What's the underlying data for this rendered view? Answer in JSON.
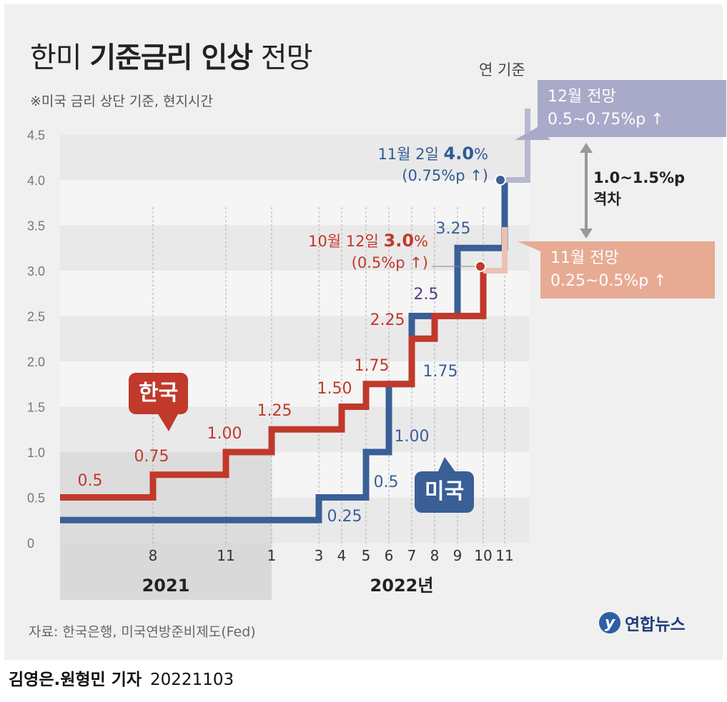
{
  "header": {
    "title_light_1": "한미 ",
    "title_bold": "기준금리 인상",
    "title_light_2": " 전망",
    "subtitle": "※미국 금리 상단 기준, 현지시간",
    "unit_label": "연 기준"
  },
  "chart_data": {
    "type": "line",
    "step": true,
    "title": "한미 기준금리 인상 전망",
    "ylim": [
      0,
      4.5
    ],
    "yticks": [
      "0",
      "0.5",
      "1.0",
      "1.5",
      "2.0",
      "2.5",
      "3.0",
      "3.5",
      "4.0",
      "4.5"
    ],
    "xticks": [
      "8",
      "11",
      "1",
      "3",
      "4",
      "5",
      "6",
      "7",
      "8",
      "9",
      "10",
      "11"
    ],
    "year_labels": [
      "2021",
      "2022년"
    ],
    "series": [
      {
        "name": "한국",
        "color": "#c0392b",
        "points": [
          {
            "x": "2021-06",
            "y": 0.5
          },
          {
            "x": "2021-08",
            "y": 0.75
          },
          {
            "x": "2021-11",
            "y": 1.0
          },
          {
            "x": "2022-01",
            "y": 1.25
          },
          {
            "x": "2022-04",
            "y": 1.5
          },
          {
            "x": "2022-05",
            "y": 1.75
          },
          {
            "x": "2022-07",
            "y": 2.25
          },
          {
            "x": "2022-08",
            "y": 2.5
          },
          {
            "x": "2022-10",
            "y": 3.0
          }
        ],
        "labels": [
          {
            "x": "2021-06",
            "text": "0.5"
          },
          {
            "x": "2021-08",
            "text": "0.75"
          },
          {
            "x": "2021-11",
            "text": "1.00"
          },
          {
            "x": "2022-01",
            "text": "1.25"
          },
          {
            "x": "2022-04",
            "text": "1.50"
          },
          {
            "x": "2022-05",
            "text": "1.75"
          },
          {
            "x": "2022-07",
            "text": "2.25"
          }
        ]
      },
      {
        "name": "미국",
        "color": "#3a5f97",
        "points": [
          {
            "x": "2021-06",
            "y": 0.25
          },
          {
            "x": "2022-03",
            "y": 0.5
          },
          {
            "x": "2022-05",
            "y": 1.0
          },
          {
            "x": "2022-06",
            "y": 1.75
          },
          {
            "x": "2022-07",
            "y": 2.5
          },
          {
            "x": "2022-09",
            "y": 3.25
          },
          {
            "x": "2022-11",
            "y": 4.0
          }
        ],
        "labels": [
          {
            "x": "2022-03",
            "text": "0.25"
          },
          {
            "x": "2022-05",
            "text": "0.5"
          },
          {
            "x": "2022-06",
            "text": "1.00"
          },
          {
            "x": "2022-07",
            "text": "1.75"
          },
          {
            "x": "2022-08",
            "text": "2.5"
          },
          {
            "x": "2022-09",
            "text": "3.25"
          }
        ]
      }
    ],
    "forecasts": [
      {
        "name": "미국 12월 전망",
        "range": [
          0.5,
          0.75
        ]
      },
      {
        "name": "한국 11월 전망",
        "range": [
          0.25,
          0.5
        ]
      }
    ]
  },
  "annotations": {
    "us_line1_normal": "11월 2일 ",
    "us_line1_bold": "4.0",
    "us_line1_pct": "%",
    "us_line2": "(0.75%p ↑)",
    "kr_line1_normal": "10월 12일 ",
    "kr_line1_bold": "3.0",
    "kr_line1_pct": "%",
    "kr_line2": "(0.5%p ↑)"
  },
  "callouts": {
    "us_title": "12월 전망",
    "us_value": "0.5~0.75%p ↑",
    "kr_title": "11월 전망",
    "kr_value": "0.25~0.5%p ↑",
    "gap_value": "1.0~1.5%p",
    "gap_label": "격차"
  },
  "badges": {
    "korea": "한국",
    "usa": "미국"
  },
  "footer": {
    "source": "자료: 한국은행, 미국연방준비제도(Fed)",
    "logo": "연합뉴스",
    "logo_mark": "y",
    "byline": "김영은.원형민 기자",
    "date": "20221103"
  },
  "colors": {
    "korea": "#c0392b",
    "usa": "#3a5f97",
    "us_forecast": "#a9aac9",
    "kr_forecast": "#e7ab93"
  }
}
